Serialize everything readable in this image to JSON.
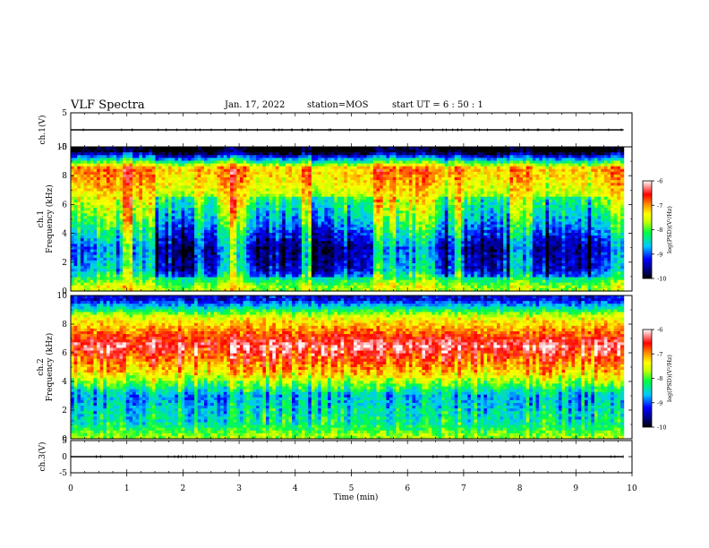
{
  "header": {
    "title": "VLF Spectra",
    "date": "Jan. 17, 2022",
    "station": "station=MOS",
    "start": "start  UT =   6 : 50 : 1"
  },
  "chart_data": {
    "type": "heatmap",
    "xlabel": "Time  (min)",
    "xlim": [
      0,
      10
    ],
    "xticks": [
      "0",
      "1",
      "2",
      "3",
      "4",
      "5",
      "6",
      "7",
      "8",
      "9",
      "10"
    ],
    "panels": [
      {
        "name": "ch1-waveform",
        "ylabel": "ch.1(V)",
        "ylim": [
          -5,
          5
        ],
        "yticks": [
          "5",
          "-5"
        ],
        "trace_level": 0
      },
      {
        "name": "ch1-spectrogram",
        "ylabel": "ch.1\nFrequency (kHz)",
        "ylim": [
          0,
          10
        ],
        "yticks": [
          "0",
          "2",
          "4",
          "6",
          "8",
          "10"
        ],
        "data_extent_min": 9.85,
        "colorbar": {
          "label": "log(PSD)(V²/Hz)",
          "range": [
            -10,
            -6
          ],
          "ticks": [
            "-6",
            "-7",
            "-8",
            "-9",
            "-10"
          ]
        },
        "dominant_level_by_freq": [
          {
            "f": 9.7,
            "log_psd": -9.9
          },
          {
            "f": 8.5,
            "log_psd": -6.8
          },
          {
            "f": 7.0,
            "log_psd": -7.2
          },
          {
            "f": 5.0,
            "log_psd": -7.9
          },
          {
            "f": 3.0,
            "log_psd": -8.8
          },
          {
            "f": 1.5,
            "log_psd": -8.6
          },
          {
            "f": 0.3,
            "log_psd": -7.5
          }
        ],
        "quiet_intervals_min": [
          [
            1.5,
            2.6
          ],
          [
            3.2,
            5.4
          ],
          [
            6.5,
            7.8
          ],
          [
            8.2,
            9.6
          ]
        ],
        "bright_vertical_bursts_min": [
          1.0,
          2.3,
          2.9,
          4.2,
          5.5,
          6.9
        ]
      },
      {
        "name": "ch2-spectrogram",
        "ylabel": "ch.2\nFrequency (kHz)",
        "ylim": [
          0,
          10
        ],
        "yticks": [
          "0",
          "2",
          "4",
          "6",
          "8",
          "10"
        ],
        "data_extent_min": 9.85,
        "colorbar": {
          "label": "log(PSD)(V²/Hz)",
          "range": [
            -10,
            -6
          ],
          "ticks": [
            "-6",
            "-7",
            "-8",
            "-9",
            "-10"
          ]
        },
        "dominant_level_by_freq": [
          {
            "f": 9.7,
            "log_psd": -9.3
          },
          {
            "f": 8.5,
            "log_psd": -7.5
          },
          {
            "f": 6.5,
            "log_psd": -6.3
          },
          {
            "f": 4.5,
            "log_psd": -7.3
          },
          {
            "f": 3.0,
            "log_psd": -8.7
          },
          {
            "f": 1.0,
            "log_psd": -8.3
          },
          {
            "f": 0.2,
            "log_psd": -7.8
          }
        ]
      },
      {
        "name": "ch3-waveform",
        "ylabel": "ch.3(V)",
        "ylim": [
          -5,
          5
        ],
        "yticks": [
          "5",
          "0",
          "-5"
        ],
        "trace_level": 0
      }
    ]
  }
}
